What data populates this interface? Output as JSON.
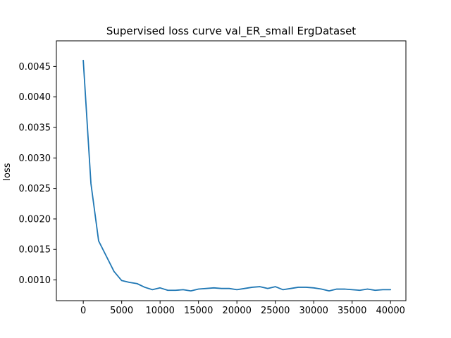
{
  "chart_data": {
    "type": "line",
    "title": "Supervised loss curve val_ER_small ErgDataset",
    "xlabel": "",
    "ylabel": "loss",
    "xlim": [
      -3500,
      42000
    ],
    "ylim": [
      0.00066,
      0.00492
    ],
    "xticks": [
      0,
      5000,
      10000,
      15000,
      20000,
      25000,
      30000,
      35000,
      40000
    ],
    "xtick_labels": [
      "0",
      "5000",
      "10000",
      "15000",
      "20000",
      "25000",
      "30000",
      "35000",
      "40000"
    ],
    "yticks": [
      0.001,
      0.0015,
      0.002,
      0.0025,
      0.003,
      0.0035,
      0.004,
      0.0045
    ],
    "ytick_labels": [
      "0.0010",
      "0.0015",
      "0.0020",
      "0.0025",
      "0.0030",
      "0.0035",
      "0.0040",
      "0.0045"
    ],
    "grid": false,
    "legend": "none",
    "series": [
      {
        "color": "#1f77b4",
        "x": [
          0,
          1000,
          2000,
          3000,
          4000,
          5000,
          6000,
          7000,
          8000,
          9000,
          10000,
          11000,
          12000,
          13000,
          14000,
          15000,
          16000,
          17000,
          18000,
          19000,
          20000,
          21000,
          22000,
          23000,
          24000,
          25000,
          26000,
          27000,
          28000,
          29000,
          30000,
          31000,
          32000,
          33000,
          34000,
          35000,
          36000,
          37000,
          38000,
          39000,
          40000
        ],
        "y": [
          0.0046,
          0.00258,
          0.00164,
          0.00139,
          0.00114,
          0.00099,
          0.00096,
          0.00094,
          0.00088,
          0.00084,
          0.00087,
          0.00083,
          0.00083,
          0.00084,
          0.00082,
          0.00085,
          0.00086,
          0.00087,
          0.00086,
          0.00086,
          0.00084,
          0.00086,
          0.00088,
          0.00089,
          0.00086,
          0.00089,
          0.00084,
          0.00086,
          0.00088,
          0.00088,
          0.00087,
          0.00085,
          0.00082,
          0.00085,
          0.00085,
          0.00084,
          0.00083,
          0.00085,
          0.00083,
          0.00084,
          0.00084
        ]
      }
    ]
  }
}
